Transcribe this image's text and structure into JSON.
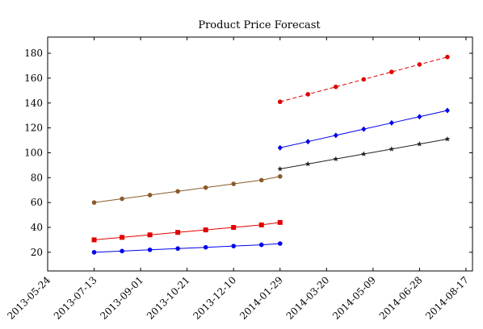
{
  "chart_data": {
    "type": "line",
    "title": "Product Price Forecast",
    "xlabel": "",
    "ylabel": "",
    "x_axis": {
      "type": "date",
      "range": [
        "2013-05-24",
        "2014-08-24"
      ],
      "ticks": [
        "2013-05-24",
        "2013-07-13",
        "2013-09-01",
        "2013-10-21",
        "2013-12-10",
        "2014-01-29",
        "2014-03-20",
        "2014-05-09",
        "2014-06-28",
        "2014-08-17"
      ]
    },
    "y_axis": {
      "range": [
        5,
        193
      ],
      "ticks": [
        20,
        40,
        60,
        80,
        100,
        120,
        140,
        160,
        180
      ]
    },
    "grid": false,
    "legend": "none",
    "series": [
      {
        "color": "#8b5a2b",
        "marker": "circle",
        "line_style": "solid",
        "points": [
          {
            "x": "2013-07-13",
            "y": 60
          },
          {
            "x": "2013-08-12",
            "y": 63
          },
          {
            "x": "2013-09-11",
            "y": 66
          },
          {
            "x": "2013-10-11",
            "y": 69
          },
          {
            "x": "2013-11-10",
            "y": 72
          },
          {
            "x": "2013-12-10",
            "y": 75
          },
          {
            "x": "2014-01-09",
            "y": 78
          },
          {
            "x": "2014-01-29",
            "y": 81
          }
        ]
      },
      {
        "color": "#e00000",
        "marker": "square",
        "line_style": "solid",
        "points": [
          {
            "x": "2013-07-13",
            "y": 30
          },
          {
            "x": "2013-08-12",
            "y": 32
          },
          {
            "x": "2013-09-11",
            "y": 34
          },
          {
            "x": "2013-10-11",
            "y": 36
          },
          {
            "x": "2013-11-10",
            "y": 38
          },
          {
            "x": "2013-12-10",
            "y": 40
          },
          {
            "x": "2014-01-09",
            "y": 42
          },
          {
            "x": "2014-01-29",
            "y": 44
          }
        ]
      },
      {
        "color": "#0000ee",
        "marker": "circle",
        "line_style": "solid",
        "points": [
          {
            "x": "2013-07-13",
            "y": 20
          },
          {
            "x": "2013-08-12",
            "y": 21
          },
          {
            "x": "2013-09-11",
            "y": 22
          },
          {
            "x": "2013-10-11",
            "y": 23
          },
          {
            "x": "2013-11-10",
            "y": 24
          },
          {
            "x": "2013-12-10",
            "y": 25
          },
          {
            "x": "2014-01-09",
            "y": 26
          },
          {
            "x": "2014-01-29",
            "y": 27
          }
        ]
      },
      {
        "color": "#e00000",
        "marker": "circle",
        "line_style": "dashed",
        "points": [
          {
            "x": "2014-01-29",
            "y": 141
          },
          {
            "x": "2014-02-28",
            "y": 147
          },
          {
            "x": "2014-03-30",
            "y": 153
          },
          {
            "x": "2014-04-29",
            "y": 159
          },
          {
            "x": "2014-05-29",
            "y": 165
          },
          {
            "x": "2014-06-28",
            "y": 171
          },
          {
            "x": "2014-07-28",
            "y": 177
          }
        ]
      },
      {
        "color": "#0000ee",
        "marker": "diamond",
        "line_style": "solid",
        "points": [
          {
            "x": "2014-01-29",
            "y": 104
          },
          {
            "x": "2014-02-28",
            "y": 109
          },
          {
            "x": "2014-03-30",
            "y": 114
          },
          {
            "x": "2014-04-29",
            "y": 119
          },
          {
            "x": "2014-05-29",
            "y": 124
          },
          {
            "x": "2014-06-28",
            "y": 129
          },
          {
            "x": "2014-07-28",
            "y": 134
          }
        ]
      },
      {
        "color": "#222222",
        "marker": "star",
        "line_style": "solid",
        "points": [
          {
            "x": "2014-01-29",
            "y": 87
          },
          {
            "x": "2014-02-28",
            "y": 91
          },
          {
            "x": "2014-03-30",
            "y": 95
          },
          {
            "x": "2014-04-29",
            "y": 99
          },
          {
            "x": "2014-05-29",
            "y": 103
          },
          {
            "x": "2014-06-28",
            "y": 107
          },
          {
            "x": "2014-07-28",
            "y": 111
          }
        ]
      }
    ]
  }
}
